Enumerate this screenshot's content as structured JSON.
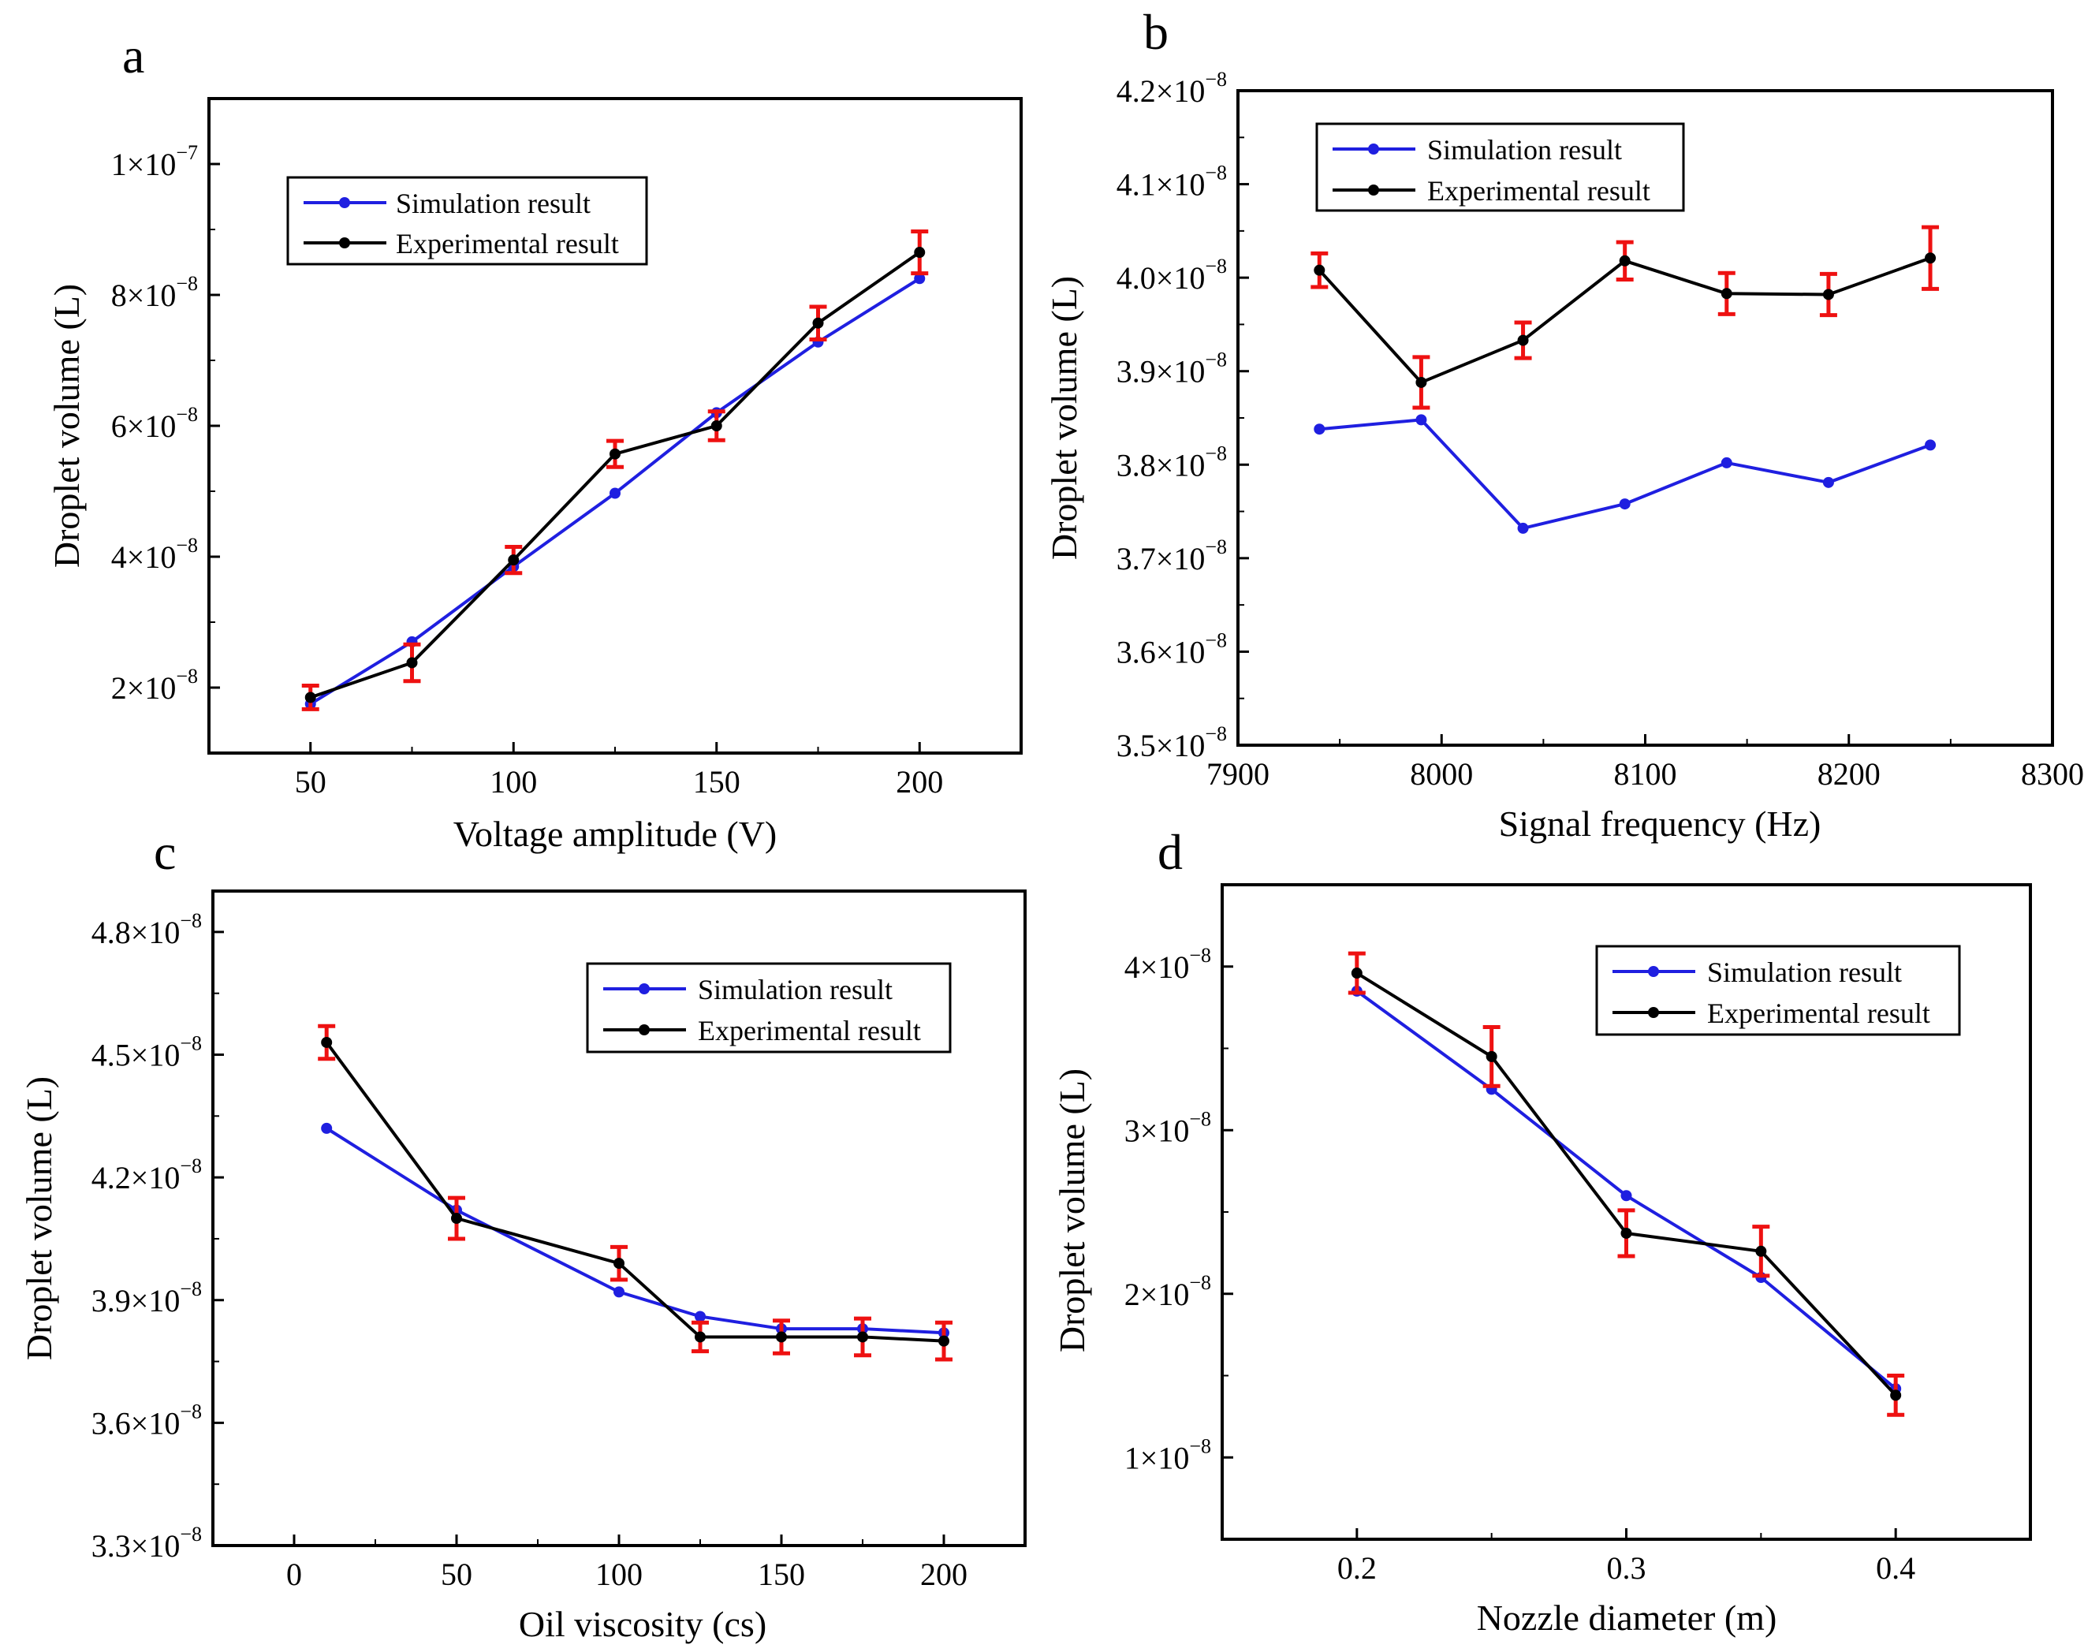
{
  "colors": {
    "simulation": "#1f1fe0",
    "experimental": "#000000",
    "error_bar": "#ee1111",
    "frame": "#000000"
  },
  "chart_data": [
    {
      "panel": "a",
      "type": "line",
      "xlabel": "Voltage amplitude (V)",
      "ylabel": "Droplet volume (L)",
      "xlim": [
        25,
        225
      ],
      "ylim": [
        1e-08,
        1.1e-07
      ],
      "xticks": [
        50,
        100,
        150,
        200
      ],
      "xtick_labels": [
        "50",
        "100",
        "150",
        "200"
      ],
      "yticks": [
        2e-08,
        4e-08,
        6e-08,
        8e-08,
        1e-07
      ],
      "ytick_labels": [
        {
          "mantissa": "2×10",
          "exp": "−8"
        },
        {
          "mantissa": "4×10",
          "exp": "−8"
        },
        {
          "mantissa": "6×10",
          "exp": "−8"
        },
        {
          "mantissa": "8×10",
          "exp": "−8"
        },
        {
          "mantissa": "1×10",
          "exp": "−7"
        }
      ],
      "legend": [
        "Simulation result",
        "Experimental result"
      ],
      "legend_position": "top-left",
      "series": [
        {
          "name": "Simulation result",
          "x": [
            50,
            75,
            100,
            125,
            150,
            175,
            200
          ],
          "values": [
            1.75e-08,
            2.7e-08,
            3.85e-08,
            4.97e-08,
            6.2e-08,
            7.28e-08,
            8.25e-08
          ]
        },
        {
          "name": "Experimental result",
          "x": [
            50,
            75,
            100,
            125,
            150,
            175,
            200
          ],
          "values": [
            1.85e-08,
            2.38e-08,
            3.95e-08,
            5.57e-08,
            6e-08,
            7.57e-08,
            8.65e-08
          ],
          "errors": [
            1.8e-09,
            2.8e-09,
            2e-09,
            2e-09,
            2.2e-09,
            2.5e-09,
            3.2e-09
          ]
        }
      ]
    },
    {
      "panel": "b",
      "type": "line",
      "xlabel": "Signal frequency (Hz)",
      "ylabel": "Droplet volume (L)",
      "xlim": [
        7900,
        8300
      ],
      "ylim": [
        3.5e-08,
        4.2e-08
      ],
      "xticks": [
        7900,
        8000,
        8100,
        8200,
        8300
      ],
      "xtick_labels": [
        "7900",
        "8000",
        "8100",
        "8200",
        "8300"
      ],
      "yticks": [
        3.5e-08,
        3.6e-08,
        3.7e-08,
        3.8e-08,
        3.9e-08,
        4e-08,
        4.1e-08,
        4.2e-08
      ],
      "ytick_labels": [
        {
          "mantissa": "3.5×10",
          "exp": "−8"
        },
        {
          "mantissa": "3.6×10",
          "exp": "−8"
        },
        {
          "mantissa": "3.7×10",
          "exp": "−8"
        },
        {
          "mantissa": "3.8×10",
          "exp": "−8"
        },
        {
          "mantissa": "3.9×10",
          "exp": "−8"
        },
        {
          "mantissa": "4.0×10",
          "exp": "−8"
        },
        {
          "mantissa": "4.1×10",
          "exp": "−8"
        },
        {
          "mantissa": "4.2×10",
          "exp": "−8"
        }
      ],
      "legend": [
        "Simulation result",
        "Experimental result"
      ],
      "legend_position": "top-left",
      "series": [
        {
          "name": "Simulation result",
          "x": [
            7940,
            7990,
            8040,
            8090,
            8140,
            8190,
            8240
          ],
          "values": [
            3.838e-08,
            3.848e-08,
            3.732e-08,
            3.758e-08,
            3.802e-08,
            3.781e-08,
            3.821e-08
          ]
        },
        {
          "name": "Experimental result",
          "x": [
            7940,
            7990,
            8040,
            8090,
            8140,
            8190,
            8240
          ],
          "values": [
            4.008e-08,
            3.888e-08,
            3.933e-08,
            4.018e-08,
            3.983e-08,
            3.982e-08,
            4.021e-08
          ],
          "errors": [
            1.8e-10,
            2.7e-10,
            1.9e-10,
            2e-10,
            2.2e-10,
            2.2e-10,
            3.3e-10
          ]
        }
      ]
    },
    {
      "panel": "c",
      "type": "line",
      "xlabel": "Oil viscosity (cs)",
      "ylabel": "Droplet volume (L)",
      "xlim": [
        -25,
        225
      ],
      "ylim": [
        3.3e-08,
        4.9e-08
      ],
      "xticks": [
        0,
        50,
        100,
        150,
        200
      ],
      "xtick_labels": [
        "0",
        "50",
        "100",
        "150",
        "200"
      ],
      "yticks": [
        3.3e-08,
        3.6e-08,
        3.9e-08,
        4.2e-08,
        4.5e-08,
        4.8e-08
      ],
      "ytick_labels": [
        {
          "mantissa": "3.3×10",
          "exp": "−8"
        },
        {
          "mantissa": "3.6×10",
          "exp": "−8"
        },
        {
          "mantissa": "3.9×10",
          "exp": "−8"
        },
        {
          "mantissa": "4.2×10",
          "exp": "−8"
        },
        {
          "mantissa": "4.5×10",
          "exp": "−8"
        },
        {
          "mantissa": "4.8×10",
          "exp": "−8"
        }
      ],
      "legend": [
        "Simulation result",
        "Experimental result"
      ],
      "legend_position": "top-right",
      "series": [
        {
          "name": "Simulation result",
          "x": [
            10,
            50,
            100,
            125,
            150,
            175,
            200
          ],
          "values": [
            4.32e-08,
            4.12e-08,
            3.92e-08,
            3.86e-08,
            3.83e-08,
            3.83e-08,
            3.82e-08
          ]
        },
        {
          "name": "Experimental result",
          "x": [
            10,
            50,
            100,
            125,
            150,
            175,
            200
          ],
          "values": [
            4.53e-08,
            4.1e-08,
            3.99e-08,
            3.81e-08,
            3.81e-08,
            3.81e-08,
            3.8e-08
          ],
          "errors": [
            4e-10,
            5e-10,
            4e-10,
            3.5e-10,
            4e-10,
            4.5e-10,
            4.5e-10
          ]
        }
      ]
    },
    {
      "panel": "d",
      "type": "line",
      "xlabel": "Nozzle diameter (m)",
      "ylabel": "Droplet volume (L)",
      "xlim": [
        0.15,
        0.45
      ],
      "ylim": [
        5e-09,
        4.5e-08
      ],
      "xticks": [
        0.2,
        0.3,
        0.4
      ],
      "xtick_labels": [
        "0.2",
        "0.3",
        "0.4"
      ],
      "yticks": [
        1e-08,
        2e-08,
        3e-08,
        4e-08
      ],
      "ytick_labels": [
        {
          "mantissa": "1×10",
          "exp": "−8"
        },
        {
          "mantissa": "2×10",
          "exp": "−8"
        },
        {
          "mantissa": "3×10",
          "exp": "−8"
        },
        {
          "mantissa": "4×10",
          "exp": "−8"
        }
      ],
      "legend": [
        "Simulation result",
        "Experimental result"
      ],
      "legend_position": "top-right",
      "series": [
        {
          "name": "Simulation result",
          "x": [
            0.2,
            0.25,
            0.3,
            0.35,
            0.4
          ],
          "values": [
            3.85e-08,
            3.25e-08,
            2.6e-08,
            2.1e-08,
            1.42e-08
          ]
        },
        {
          "name": "Experimental result",
          "x": [
            0.2,
            0.25,
            0.3,
            0.35,
            0.4
          ],
          "values": [
            3.96e-08,
            3.45e-08,
            2.37e-08,
            2.26e-08,
            1.38e-08
          ],
          "errors": [
            1.2e-09,
            1.8e-09,
            1.4e-09,
            1.5e-09,
            1.2e-09
          ]
        }
      ]
    }
  ]
}
